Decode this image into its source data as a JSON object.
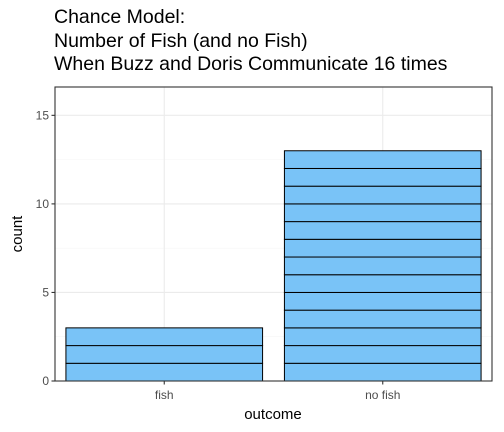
{
  "chart_data": {
    "type": "bar",
    "title_lines": [
      "Chance Model:",
      "Number of Fish (and no Fish)",
      "When Buzz and Doris Communicate 16 times"
    ],
    "xlabel": "outcome",
    "ylabel": "count",
    "categories": [
      "fish",
      "no fish"
    ],
    "values": [
      3,
      13
    ],
    "ylim": [
      0,
      16.6
    ],
    "yticks": [
      0,
      5,
      10,
      15
    ],
    "grid": true,
    "stacked_units": true,
    "colors": {
      "bar_fill": "#79C3F7",
      "bar_stroke": "#000000",
      "panel_border": "#333333",
      "grid_major": "#EBEBEB",
      "grid_minor": "#F5F5F5"
    }
  }
}
